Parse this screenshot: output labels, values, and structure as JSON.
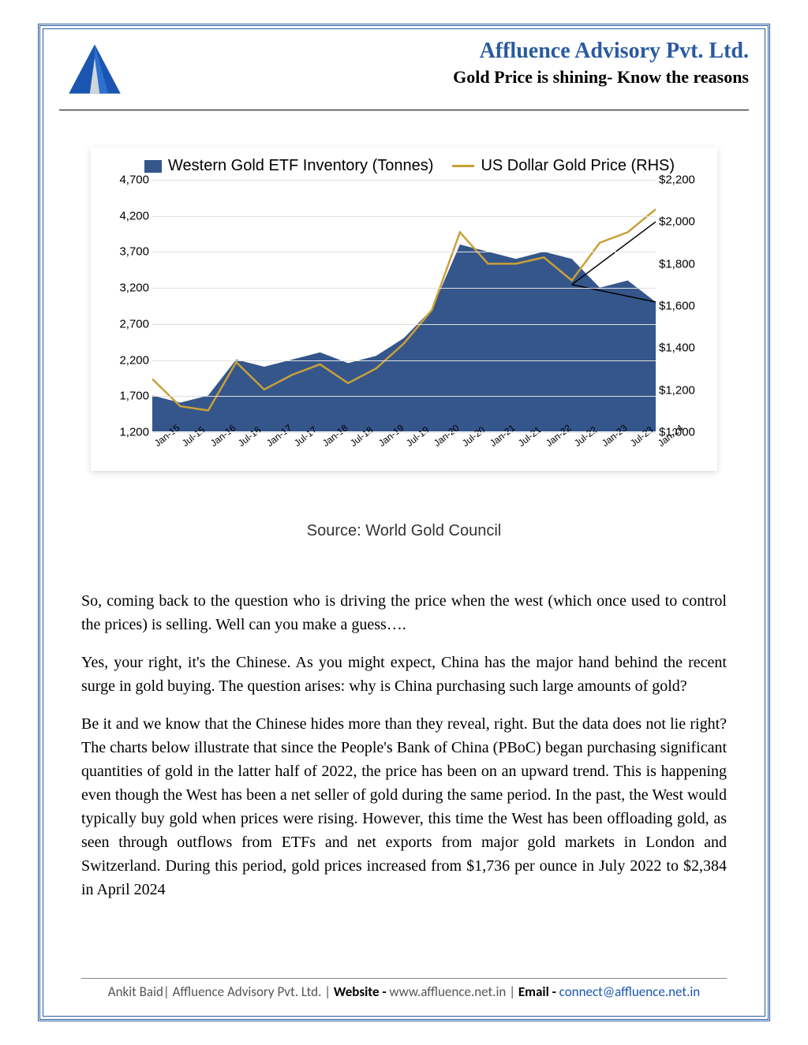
{
  "header": {
    "company": "Affluence Advisory Pvt. Ltd.",
    "subtitle": "Gold Price is shining- Know the reasons",
    "company_color": "#2a5aa0"
  },
  "chart": {
    "type": "area+line",
    "legend_area": "Western Gold ETF Inventory (Tonnes)",
    "legend_line": "US Dollar Gold Price (RHS)",
    "area_color": "#34568b",
    "line_color": "#c9a038",
    "grid_color": "#e0e0e0",
    "background_color": "#ffffff",
    "left_axis": {
      "min": 1200,
      "max": 4700,
      "step": 500,
      "ticks": [
        1200,
        1700,
        2200,
        2700,
        3200,
        3700,
        4200,
        4700
      ]
    },
    "right_axis": {
      "min": 1000,
      "max": 2200,
      "step": 200,
      "ticks": [
        1000,
        1200,
        1400,
        1600,
        1800,
        2000,
        2200
      ],
      "prefix": "$"
    },
    "x_labels": [
      "Jan-15",
      "Jul-15",
      "Jan-16",
      "Jul-16",
      "Jan-17",
      "Jul-17",
      "Jan-18",
      "Jul-18",
      "Jan-19",
      "Jul-19",
      "Jan-20",
      "Jul-20",
      "Jan-21",
      "Jul-21",
      "Jan-22",
      "Jul-22",
      "Jan-23",
      "Jul-23",
      "Jan-24"
    ],
    "area_values": [
      1700,
      1600,
      1700,
      2200,
      2100,
      2200,
      2300,
      2150,
      2250,
      2500,
      2900,
      3800,
      3700,
      3600,
      3700,
      3600,
      3200,
      3300,
      3000
    ],
    "line_values_rhs": [
      1250,
      1120,
      1100,
      1330,
      1200,
      1270,
      1320,
      1230,
      1300,
      1420,
      1580,
      1950,
      1800,
      1800,
      1830,
      1720,
      1900,
      1950,
      2060
    ],
    "line_width": 2.5,
    "shadow": true
  },
  "source": "Source: World Gold Council",
  "paragraphs": [
    "So, coming back to the question who is driving the price when the west (which once used to control the prices) is selling. Well can you make a guess….",
    "Yes, your right, it's the Chinese. As you might expect, China has the major hand behind the recent surge in gold buying. The question arises: why is China purchasing such large amounts of gold?",
    "Be it and we know that the Chinese hides more than they reveal, right. But the data does not lie right? The charts below illustrate that since the People's Bank of China (PBoC) began purchasing significant quantities of gold in the latter half of 2022, the price has been on an upward trend. This is happening even though the West has been a net seller of gold during the same period. In the past, the West would typically buy gold when prices were rising. However, this time the West has been offloading gold, as seen through outflows from ETFs and net exports from major gold markets in London and Switzerland. During this period, gold prices increased from $1,736 per ounce in July 2022 to $2,384 in April 2024"
  ],
  "footer": {
    "author": "Ankit Baid| Affluence Advisory Pvt. Ltd. | ",
    "website_label": "Website - ",
    "website": "www.affluence.net.in ",
    "sep": "|",
    "email_label": "Email - ",
    "email": "connect@affluence.net.in"
  }
}
